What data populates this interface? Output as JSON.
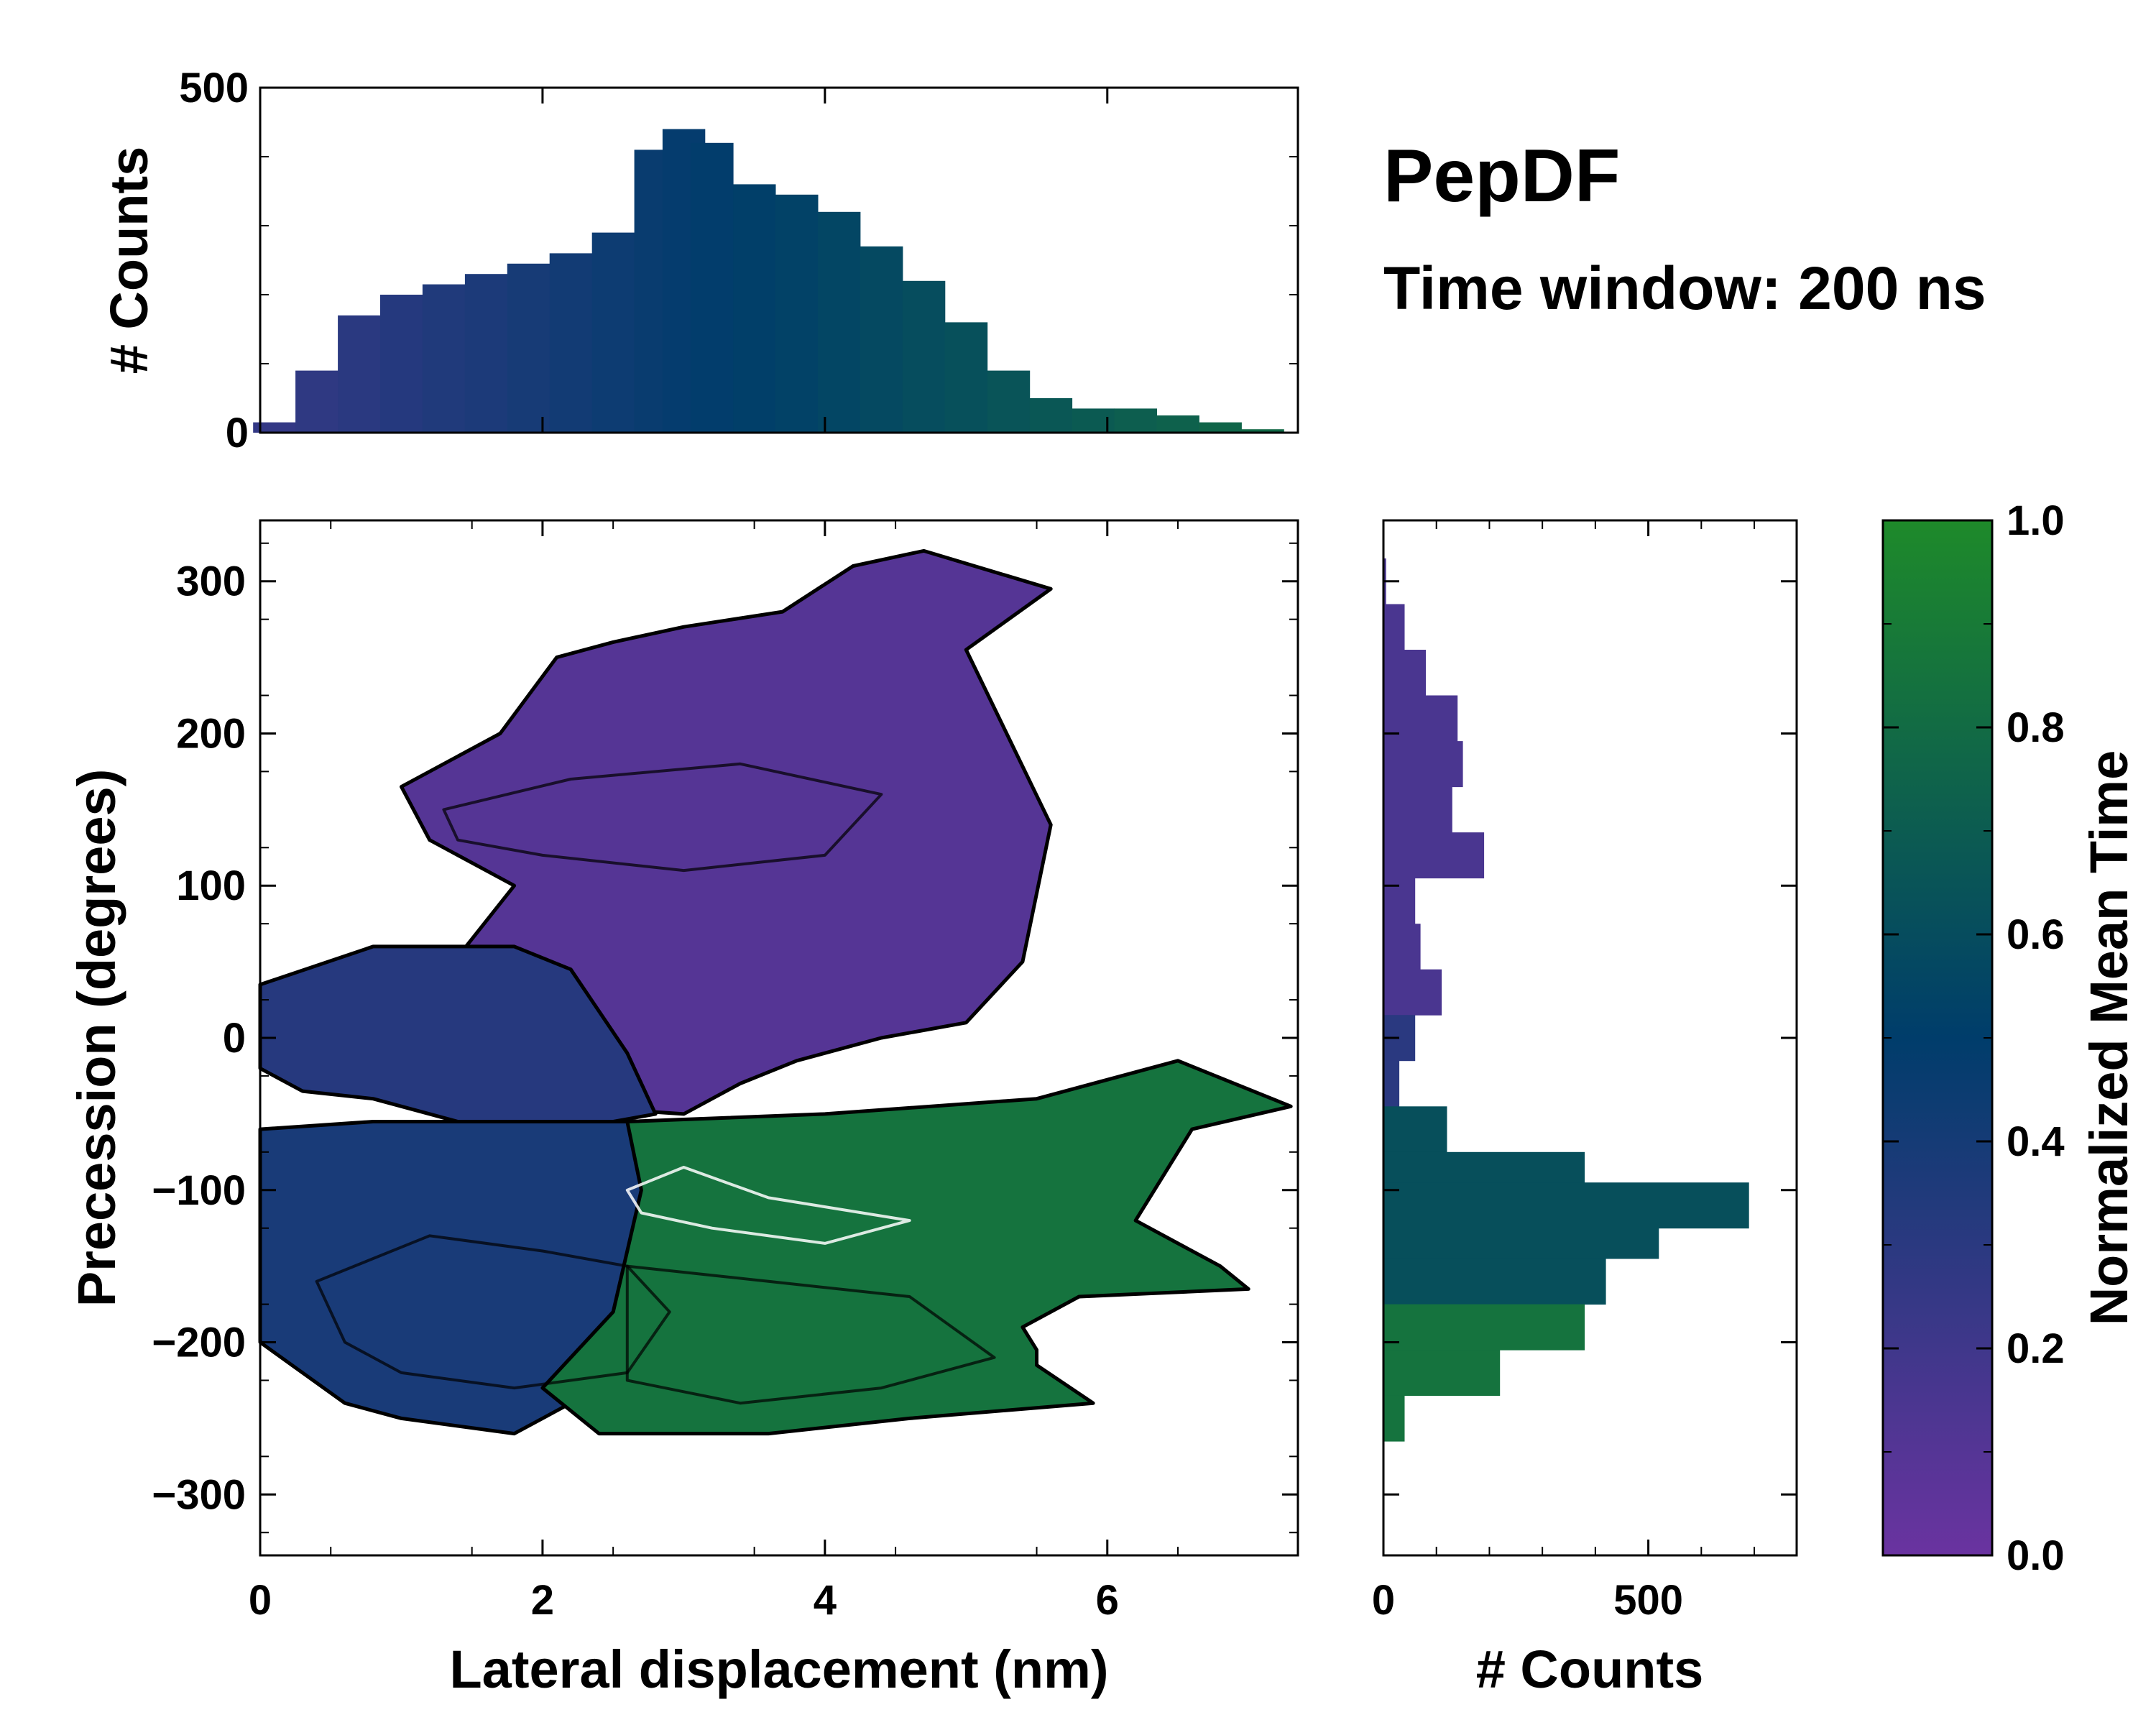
{
  "title": "PepDF",
  "subtitle": "Time window: 200 ns",
  "colors": {
    "low": "#6a33a0",
    "mid": "#003d6b",
    "high": "#1e8a2a",
    "frame": "#000000",
    "contour": "#000000",
    "contour_light": "#ffffff"
  },
  "chart_data": [
    {
      "id": "main",
      "type": "heatmap",
      "xlabel": "Lateral displacement (nm)",
      "ylabel": "Precession (degrees)",
      "xlim": [
        0,
        7.35
      ],
      "ylim": [
        -340,
        340
      ],
      "xticks": [
        "0",
        "2",
        "4",
        "6"
      ],
      "xtick_values": [
        0,
        2,
        4,
        6
      ],
      "yticks": [
        "300",
        "200",
        "100",
        "0",
        "−100",
        "−200",
        "−300"
      ],
      "ytick_values": [
        300,
        200,
        100,
        0,
        -100,
        -200,
        -300
      ],
      "regions": [
        {
          "name": "upper-purple",
          "value": 0.1,
          "points": [
            [
              1.0,
              165
            ],
            [
              1.7,
              200
            ],
            [
              2.1,
              250
            ],
            [
              2.5,
              260
            ],
            [
              3.0,
              270
            ],
            [
              3.7,
              280
            ],
            [
              4.2,
              310
            ],
            [
              4.7,
              320
            ],
            [
              5.6,
              295
            ],
            [
              5.0,
              255
            ],
            [
              5.6,
              140
            ],
            [
              5.4,
              50
            ],
            [
              5.0,
              10
            ],
            [
              4.4,
              0
            ],
            [
              3.8,
              -15
            ],
            [
              3.4,
              -30
            ],
            [
              3.0,
              -50
            ],
            [
              2.2,
              -45
            ],
            [
              1.8,
              -20
            ],
            [
              1.2,
              30
            ],
            [
              1.5,
              65
            ],
            [
              1.8,
              100
            ],
            [
              1.2,
              130
            ]
          ]
        },
        {
          "name": "middle-blue",
          "value": 0.32,
          "points": [
            [
              0.0,
              35
            ],
            [
              0.8,
              60
            ],
            [
              1.8,
              60
            ],
            [
              2.2,
              45
            ],
            [
              2.6,
              -10
            ],
            [
              2.8,
              -50
            ],
            [
              2.2,
              -60
            ],
            [
              1.6,
              -60
            ],
            [
              0.8,
              -40
            ],
            [
              0.3,
              -35
            ],
            [
              0.0,
              -20
            ]
          ]
        },
        {
          "name": "lower-blue",
          "value": 0.38,
          "points": [
            [
              0.0,
              -60
            ],
            [
              0.8,
              -55
            ],
            [
              2.6,
              -55
            ],
            [
              2.9,
              -100
            ],
            [
              2.6,
              -200
            ],
            [
              2.2,
              -240
            ],
            [
              1.8,
              -260
            ],
            [
              1.0,
              -250
            ],
            [
              0.6,
              -240
            ],
            [
              0.3,
              -220
            ],
            [
              0.0,
              -200
            ]
          ]
        },
        {
          "name": "lower-green",
          "value": 0.85,
          "points": [
            [
              2.6,
              -55
            ],
            [
              4.0,
              -50
            ],
            [
              5.5,
              -40
            ],
            [
              6.5,
              -15
            ],
            [
              7.3,
              -45
            ],
            [
              6.6,
              -60
            ],
            [
              6.2,
              -120
            ],
            [
              6.8,
              -150
            ],
            [
              7.0,
              -165
            ],
            [
              5.8,
              -170
            ],
            [
              5.4,
              -190
            ],
            [
              5.5,
              -205
            ],
            [
              5.5,
              -215
            ],
            [
              5.9,
              -240
            ],
            [
              4.6,
              -250
            ],
            [
              3.6,
              -260
            ],
            [
              2.4,
              -260
            ],
            [
              2.0,
              -230
            ],
            [
              2.5,
              -180
            ],
            [
              2.7,
              -100
            ]
          ]
        }
      ],
      "contours": [
        {
          "level": "outer",
          "points": [
            [
              0.4,
              -160
            ],
            [
              1.2,
              -130
            ],
            [
              2.0,
              -140
            ],
            [
              2.6,
              -150
            ],
            [
              2.9,
              -180
            ],
            [
              2.6,
              -220
            ],
            [
              1.8,
              -230
            ],
            [
              1.0,
              -220
            ],
            [
              0.6,
              -200
            ]
          ]
        },
        {
          "level": "outer",
          "points": [
            [
              2.6,
              -150
            ],
            [
              3.6,
              -160
            ],
            [
              4.6,
              -170
            ],
            [
              5.2,
              -210
            ],
            [
              4.4,
              -230
            ],
            [
              3.4,
              -240
            ],
            [
              2.6,
              -225
            ]
          ]
        },
        {
          "level": "peak",
          "points": [
            [
              2.6,
              -100
            ],
            [
              3.0,
              -85
            ],
            [
              3.6,
              -105
            ],
            [
              4.6,
              -120
            ],
            [
              4.0,
              -135
            ],
            [
              3.2,
              -125
            ],
            [
              2.7,
              -115
            ]
          ]
        },
        {
          "level": "upper",
          "points": [
            [
              1.3,
              150
            ],
            [
              2.2,
              170
            ],
            [
              3.4,
              180
            ],
            [
              4.4,
              160
            ],
            [
              4.0,
              120
            ],
            [
              3.0,
              110
            ],
            [
              2.0,
              120
            ],
            [
              1.4,
              130
            ]
          ]
        }
      ]
    },
    {
      "id": "top-histogram",
      "type": "bar",
      "ylabel": "# Counts",
      "xlim": [
        0,
        7.35
      ],
      "ylim": [
        0,
        500
      ],
      "yticks": [
        "0",
        "500"
      ],
      "ytick_values": [
        0,
        500
      ],
      "x": [
        0.1,
        0.4,
        0.7,
        1.0,
        1.3,
        1.6,
        1.9,
        2.2,
        2.5,
        2.8,
        3.0,
        3.2,
        3.5,
        3.8,
        4.1,
        4.4,
        4.7,
        5.0,
        5.3,
        5.6,
        5.9,
        6.2,
        6.5,
        6.8,
        7.1
      ],
      "values": [
        15,
        90,
        170,
        200,
        215,
        230,
        245,
        260,
        290,
        410,
        440,
        420,
        360,
        345,
        320,
        270,
        220,
        160,
        90,
        50,
        35,
        35,
        25,
        15,
        5
      ]
    },
    {
      "id": "right-histogram",
      "type": "bar",
      "orientation": "horizontal",
      "xlabel": "# Counts",
      "xlim": [
        0,
        780
      ],
      "ylim": [
        -340,
        340
      ],
      "xticks": [
        "0",
        "500"
      ],
      "xtick_values": [
        0,
        500
      ],
      "y": [
        300,
        270,
        240,
        210,
        180,
        150,
        120,
        90,
        60,
        30,
        0,
        -30,
        -60,
        -90,
        -110,
        -130,
        -160,
        -190,
        -220,
        -250
      ],
      "values": [
        5,
        40,
        80,
        140,
        150,
        130,
        190,
        60,
        70,
        110,
        60,
        30,
        120,
        380,
        690,
        520,
        420,
        380,
        220,
        40
      ]
    },
    {
      "id": "colorbar",
      "type": "colorbar",
      "label": "Normalized Mean Time",
      "ticks": [
        "0.0",
        "0.2",
        "0.4",
        "0.6",
        "0.8",
        "1.0"
      ],
      "tick_values": [
        0,
        0.2,
        0.4,
        0.6,
        0.8,
        1.0
      ]
    }
  ]
}
